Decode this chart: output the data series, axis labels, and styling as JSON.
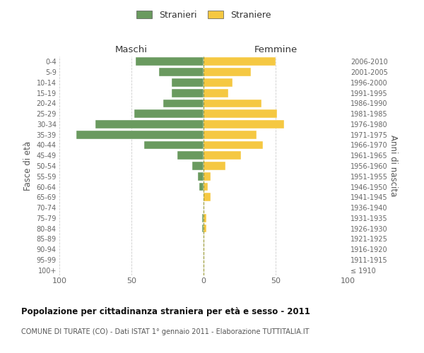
{
  "age_groups": [
    "100+",
    "95-99",
    "90-94",
    "85-89",
    "80-84",
    "75-79",
    "70-74",
    "65-69",
    "60-64",
    "55-59",
    "50-54",
    "45-49",
    "40-44",
    "35-39",
    "30-34",
    "25-29",
    "20-24",
    "15-19",
    "10-14",
    "5-9",
    "0-4"
  ],
  "birth_years": [
    "≤ 1910",
    "1911-1915",
    "1916-1920",
    "1921-1925",
    "1926-1930",
    "1931-1935",
    "1936-1940",
    "1941-1945",
    "1946-1950",
    "1951-1955",
    "1956-1960",
    "1961-1965",
    "1966-1970",
    "1971-1975",
    "1976-1980",
    "1981-1985",
    "1986-1990",
    "1991-1995",
    "1996-2000",
    "2001-2005",
    "2006-2010"
  ],
  "maschi": [
    0,
    0,
    0,
    0,
    1,
    1,
    0,
    0,
    3,
    4,
    8,
    18,
    41,
    88,
    75,
    48,
    28,
    22,
    22,
    31,
    47
  ],
  "femmine": [
    0,
    0,
    0,
    0,
    2,
    2,
    0,
    5,
    3,
    5,
    15,
    26,
    41,
    37,
    56,
    51,
    40,
    17,
    20,
    33,
    50
  ],
  "male_color": "#6a9a5f",
  "female_color": "#f5c842",
  "title": "Popolazione per cittadinanza straniera per età e sesso - 2011",
  "subtitle": "COMUNE DI TURATE (CO) - Dati ISTAT 1° gennaio 2011 - Elaborazione TUTTITALIA.IT",
  "ylabel_left": "Fasce di età",
  "ylabel_right": "Anni di nascita",
  "xlabel_left": "Maschi",
  "xlabel_top_right": "Femmine",
  "legend_male": "Stranieri",
  "legend_female": "Straniere",
  "xlim": 100,
  "background_color": "#ffffff",
  "bar_height": 0.8
}
